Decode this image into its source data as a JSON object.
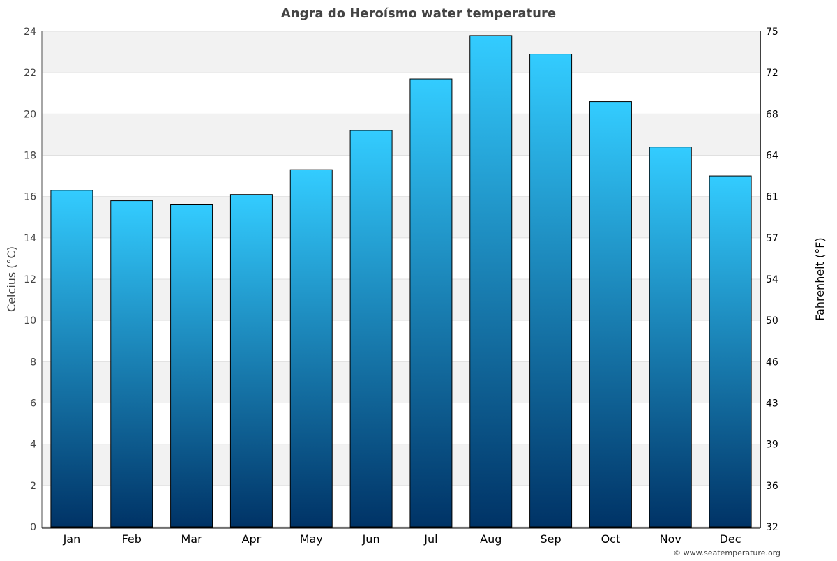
{
  "chart_data": {
    "type": "bar",
    "title": "Angra do Heroísmo water temperature",
    "ylabel": "Celcius (°C)",
    "y2label": "Fahrenheit (°F)",
    "categories": [
      "Jan",
      "Feb",
      "Mar",
      "Apr",
      "May",
      "Jun",
      "Jul",
      "Aug",
      "Sep",
      "Oct",
      "Nov",
      "Dec"
    ],
    "values": [
      16.3,
      15.8,
      15.6,
      16.1,
      17.3,
      19.2,
      21.7,
      23.8,
      22.9,
      20.6,
      18.4,
      17.0
    ],
    "ylim": [
      0,
      24
    ],
    "yticks": [
      "0",
      "2",
      "4",
      "6",
      "8",
      "10",
      "12",
      "14",
      "16",
      "18",
      "20",
      "22",
      "24"
    ],
    "y2ticks": [
      "32",
      "36",
      "39",
      "43",
      "46",
      "50",
      "54",
      "57",
      "61",
      "64",
      "68",
      "72",
      "75"
    ],
    "grid": true,
    "legend": "none",
    "colors": {
      "bar_top": "#33ccff",
      "bar_bottom": "#003366",
      "band": "#f2f2f2"
    }
  },
  "credit": "© www.seatemperature.org"
}
